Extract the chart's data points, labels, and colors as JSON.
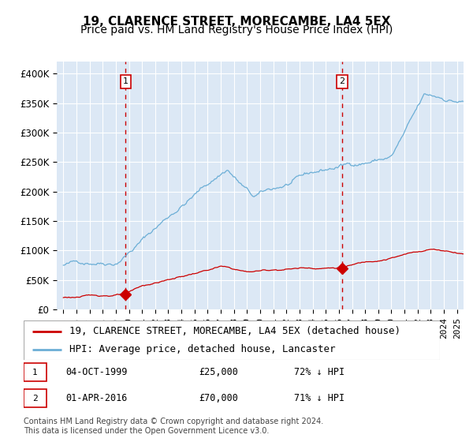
{
  "title": "19, CLARENCE STREET, MORECAMBE, LA4 5EX",
  "subtitle": "Price paid vs. HM Land Registry's House Price Index (HPI)",
  "hpi_label": "HPI: Average price, detached house, Lancaster",
  "property_label": "19, CLARENCE STREET, MORECAMBE, LA4 5EX (detached house)",
  "hpi_color": "#6baed6",
  "property_color": "#cc0000",
  "vline_color": "#cc0000",
  "background_fill": "#dce8f5",
  "purchases": [
    {
      "date_num": 1999.75,
      "price": 25000,
      "label": "1",
      "date_str": "04-OCT-1999",
      "pct": "72% ↓ HPI"
    },
    {
      "date_num": 2016.25,
      "price": 70000,
      "label": "2",
      "date_str": "01-APR-2016",
      "pct": "71% ↓ HPI"
    }
  ],
  "footnote": "Contains HM Land Registry data © Crown copyright and database right 2024.\nThis data is licensed under the Open Government Licence v3.0.",
  "ylim": [
    0,
    420000
  ],
  "xlim": [
    1994.5,
    2025.5
  ],
  "yticks": [
    0,
    50000,
    100000,
    150000,
    200000,
    250000,
    300000,
    350000,
    400000
  ],
  "ytick_labels": [
    "£0",
    "£50K",
    "£100K",
    "£150K",
    "£200K",
    "£250K",
    "£300K",
    "£350K",
    "£400K"
  ],
  "grid_color": "#ffffff",
  "title_fontsize": 11,
  "subtitle_fontsize": 10,
  "tick_fontsize": 8.5,
  "legend_fontsize": 9
}
